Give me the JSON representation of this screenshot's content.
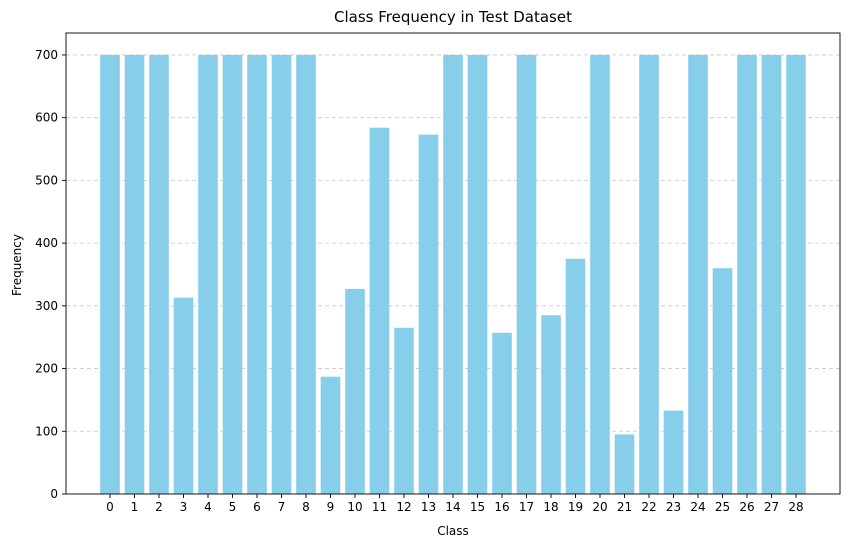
{
  "chart_data": {
    "type": "bar",
    "title": "Class Frequency in Test Dataset",
    "xlabel": "Class",
    "ylabel": "Frequency",
    "categories": [
      "0",
      "1",
      "2",
      "3",
      "4",
      "5",
      "6",
      "7",
      "8",
      "9",
      "10",
      "11",
      "12",
      "13",
      "14",
      "15",
      "16",
      "17",
      "18",
      "19",
      "20",
      "21",
      "22",
      "23",
      "24",
      "25",
      "26",
      "27",
      "28"
    ],
    "values": [
      700,
      700,
      700,
      313,
      700,
      700,
      700,
      700,
      700,
      187,
      327,
      584,
      265,
      573,
      700,
      700,
      257,
      700,
      285,
      375,
      700,
      95,
      700,
      133,
      700,
      360,
      700,
      700,
      700
    ],
    "ylim": [
      0,
      735
    ],
    "yticks": [
      0,
      100,
      200,
      300,
      400,
      500,
      600,
      700
    ],
    "grid": "y-axis, dashed",
    "colors": {
      "bar": "#87ceeb",
      "grid": "#c8c8c8",
      "axis": "#000000"
    }
  }
}
